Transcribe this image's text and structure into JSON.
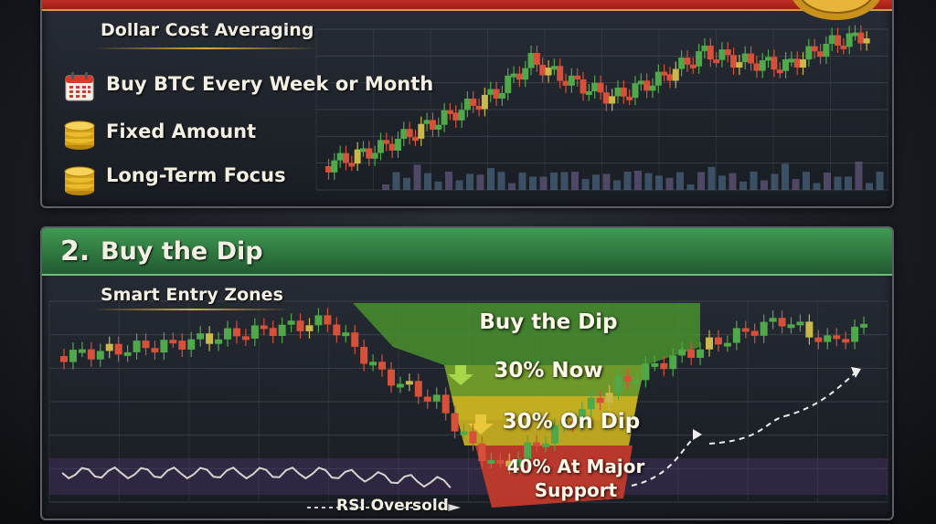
{
  "panel1": {
    "subtitle": "Dollar Cost Averaging",
    "items": [
      {
        "label": "Buy BTC Every Week or Month",
        "icon": "calendar-icon"
      },
      {
        "label": "Fixed Amount",
        "icon": "coin-stack-icon"
      },
      {
        "label": "Long-Term Focus",
        "icon": "coin-stack-icon"
      }
    ]
  },
  "panel2": {
    "number": "2.",
    "title": "Buy the Dip",
    "subtitle": "Smart Entry Zones",
    "zone_heading": "Buy the Dip",
    "zones": [
      {
        "label": "30% Now"
      },
      {
        "label": "30% On Dip"
      },
      {
        "label_line1": "40% At Major",
        "label_line2": "Support"
      }
    ],
    "rsi_label": "RSI Oversold"
  },
  "colors": {
    "up": "#4fa84a",
    "down": "#d6503a",
    "neutral": "#c9b84a",
    "banner_red": "#c9342a",
    "banner_green": "#3a8a4c",
    "zone_green": "#4c9a2e",
    "zone_yellow": "#c9b020",
    "zone_red": "#c23a2c"
  }
}
